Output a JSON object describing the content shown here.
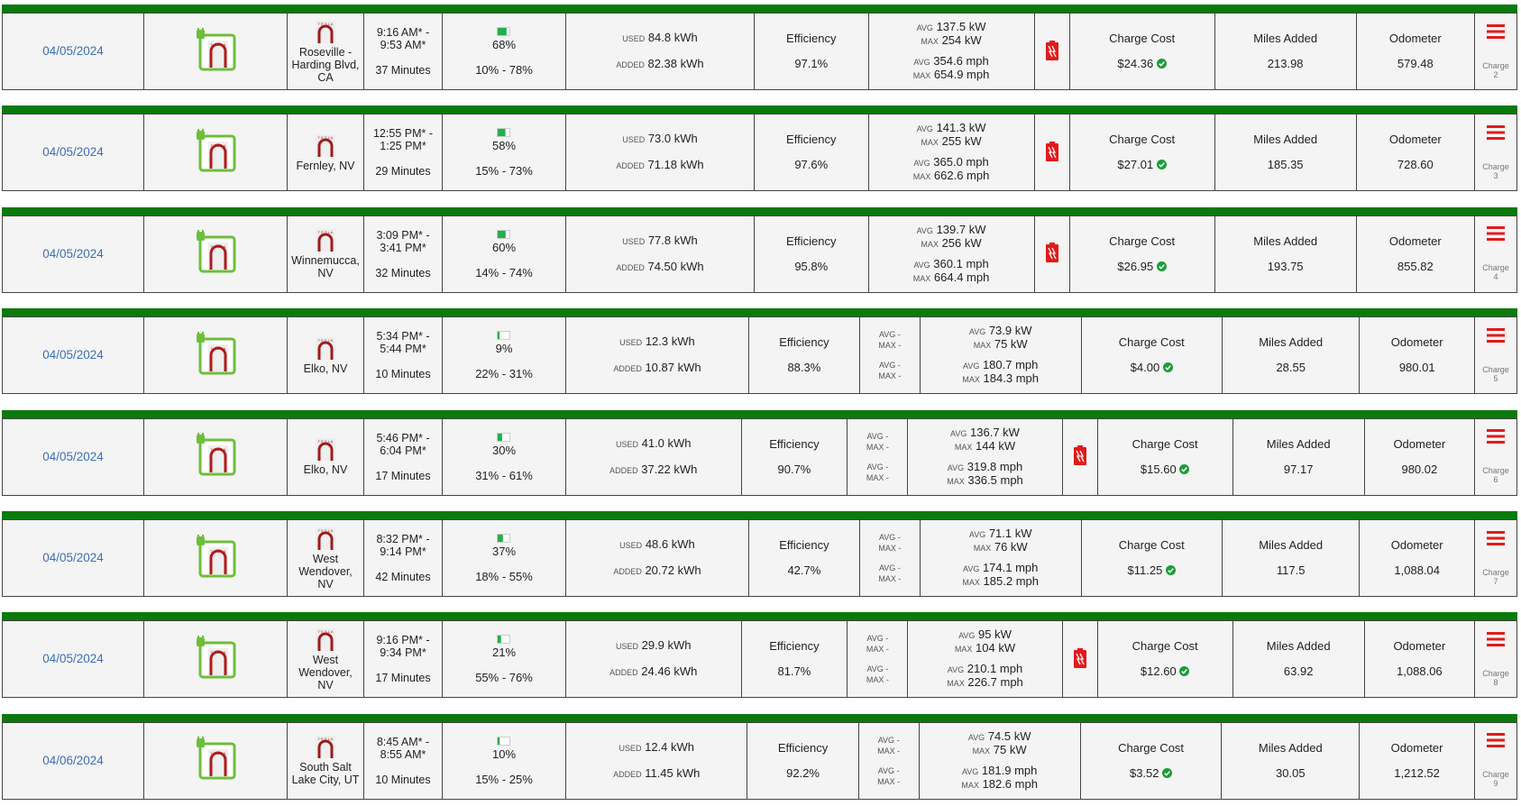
{
  "labels": {
    "used": "USED",
    "added": "ADDED",
    "avg": "AVG",
    "max": "MAX",
    "dash": "-",
    "efficiency": "Efficiency",
    "charge_cost": "Charge Cost",
    "miles_added": "Miles Added",
    "odometer": "Odometer",
    "charge": "Charge"
  },
  "rows": [
    {
      "date": "04/05/2024",
      "location": "Roseville - Harding Blvd, CA",
      "time": "9:16 AM* - 9:53 AM*",
      "duration": "37 Minutes",
      "soc": "68%",
      "soc_range": "10% - 78%",
      "used": "84.8 kWh",
      "added": "82.38 kWh",
      "efficiency": "97.1%",
      "has_empty_stats": false,
      "avg_power": "137.5 kW",
      "max_power": "254 kW",
      "avg_speed": "354.6 mph",
      "max_speed": "654.9 mph",
      "has_battery_icon": true,
      "charge_cost": "$24.36",
      "miles_added": "213.98",
      "odometer": "579.48",
      "charge_number": "2"
    },
    {
      "date": "04/05/2024",
      "location": "Fernley, NV",
      "time": "12:55 PM* - 1:25 PM*",
      "duration": "29 Minutes",
      "soc": "58%",
      "soc_range": "15% - 73%",
      "used": "73.0 kWh",
      "added": "71.18 kWh",
      "efficiency": "97.6%",
      "has_empty_stats": false,
      "avg_power": "141.3 kW",
      "max_power": "255 kW",
      "avg_speed": "365.0 mph",
      "max_speed": "662.6 mph",
      "has_battery_icon": true,
      "charge_cost": "$27.01",
      "miles_added": "185.35",
      "odometer": "728.60",
      "charge_number": "3"
    },
    {
      "date": "04/05/2024",
      "location": "Winnemucca, NV",
      "time": "3:09 PM* - 3:41 PM*",
      "duration": "32 Minutes",
      "soc": "60%",
      "soc_range": "14% - 74%",
      "used": "77.8 kWh",
      "added": "74.50 kWh",
      "efficiency": "95.8%",
      "has_empty_stats": false,
      "avg_power": "139.7 kW",
      "max_power": "256 kW",
      "avg_speed": "360.1 mph",
      "max_speed": "664.4 mph",
      "has_battery_icon": true,
      "charge_cost": "$26.95",
      "miles_added": "193.75",
      "odometer": "855.82",
      "charge_number": "4"
    },
    {
      "date": "04/05/2024",
      "location": "Elko, NV",
      "time": "5:34 PM* - 5:44 PM*",
      "duration": "10 Minutes",
      "soc": "9%",
      "soc_range": "22% - 31%",
      "used": "12.3 kWh",
      "added": "10.87 kWh",
      "efficiency": "88.3%",
      "has_empty_stats": true,
      "avg_power": "73.9 kW",
      "max_power": "75 kW",
      "avg_speed": "180.7 mph",
      "max_speed": "184.3 mph",
      "has_battery_icon": false,
      "charge_cost": "$4.00",
      "miles_added": "28.55",
      "odometer": "980.01",
      "charge_number": "5"
    },
    {
      "date": "04/05/2024",
      "location": "Elko, NV",
      "time": "5:46 PM* - 6:04 PM*",
      "duration": "17 Minutes",
      "soc": "30%",
      "soc_range": "31% - 61%",
      "used": "41.0 kWh",
      "added": "37.22 kWh",
      "efficiency": "90.7%",
      "has_empty_stats": true,
      "avg_power": "136.7 kW",
      "max_power": "144 kW",
      "avg_speed": "319.8 mph",
      "max_speed": "336.5 mph",
      "has_battery_icon": true,
      "charge_cost": "$15.60",
      "miles_added": "97.17",
      "odometer": "980.02",
      "charge_number": "6"
    },
    {
      "date": "04/05/2024",
      "location": "West Wendover, NV",
      "time": "8:32 PM* - 9:14 PM*",
      "duration": "42 Minutes",
      "soc": "37%",
      "soc_range": "18% - 55%",
      "used": "48.6 kWh",
      "added": "20.72 kWh",
      "efficiency": "42.7%",
      "has_empty_stats": true,
      "avg_power": "71.1 kW",
      "max_power": "76 kW",
      "avg_speed": "174.1 mph",
      "max_speed": "185.2 mph",
      "has_battery_icon": false,
      "charge_cost": "$11.25",
      "miles_added": "117.5",
      "odometer": "1,088.04",
      "charge_number": "7"
    },
    {
      "date": "04/05/2024",
      "location": "West Wendover, NV",
      "time": "9:16 PM* - 9:34 PM*",
      "duration": "17 Minutes",
      "soc": "21%",
      "soc_range": "55% - 76%",
      "used": "29.9 kWh",
      "added": "24.46 kWh",
      "efficiency": "81.7%",
      "has_empty_stats": true,
      "avg_power": "95 kW",
      "max_power": "104 kW",
      "avg_speed": "210.1 mph",
      "max_speed": "226.7 mph",
      "has_battery_icon": true,
      "charge_cost": "$12.60",
      "miles_added": "63.92",
      "odometer": "1,088.06",
      "charge_number": "8"
    },
    {
      "date": "04/06/2024",
      "location": "South Salt Lake City, UT",
      "time": "8:45 AM* - 8:55 AM*",
      "duration": "10 Minutes",
      "soc": "10%",
      "soc_range": "15% - 25%",
      "used": "12.4 kWh",
      "added": "11.45 kWh",
      "efficiency": "92.2%",
      "has_empty_stats": true,
      "avg_power": "74.5 kW",
      "max_power": "75 kW",
      "avg_speed": "181.9 mph",
      "max_speed": "182.6 mph",
      "has_battery_icon": false,
      "charge_cost": "$3.52",
      "miles_added": "30.05",
      "odometer": "1,212.52",
      "charge_number": "9"
    }
  ]
}
